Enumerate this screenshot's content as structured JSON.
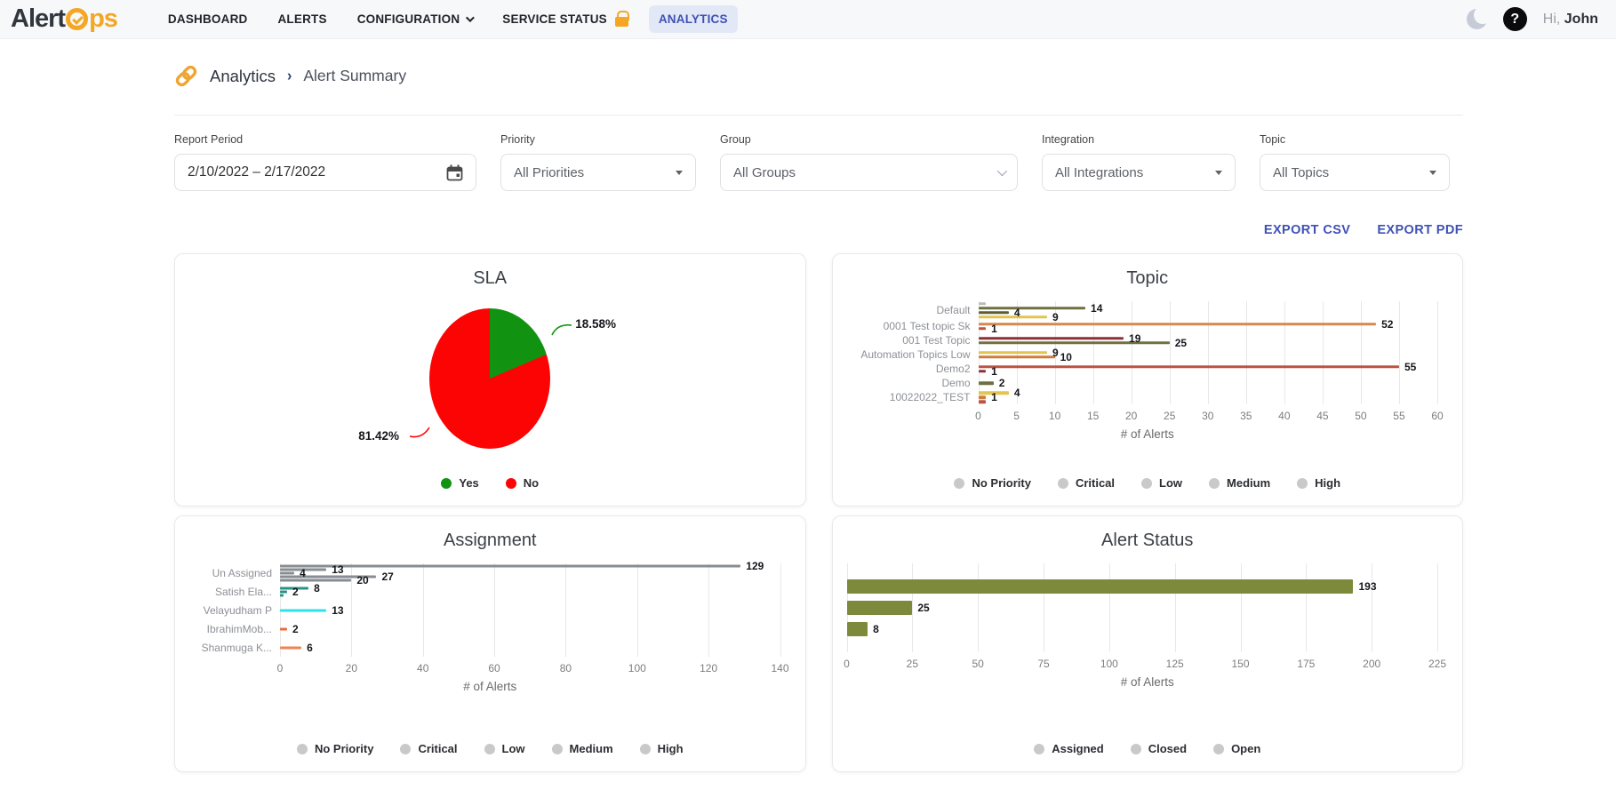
{
  "header": {
    "logo": {
      "part1": "Alert",
      "part2": "ps",
      "clock_color": "#f5a623"
    },
    "nav": [
      {
        "label": "DASHBOARD",
        "active": false,
        "dropdown": false,
        "lock": false
      },
      {
        "label": "ALERTS",
        "active": false,
        "dropdown": false,
        "lock": false
      },
      {
        "label": "CONFIGURATION",
        "active": false,
        "dropdown": true,
        "lock": false
      },
      {
        "label": "SERVICE STATUS",
        "active": false,
        "dropdown": false,
        "lock": true
      },
      {
        "label": "ANALYTICS",
        "active": true,
        "dropdown": false,
        "lock": false
      }
    ],
    "greeting_prefix": "Hi,",
    "user_name": "John",
    "accent_color": "#3f51b5",
    "lock_color": "#f5a623"
  },
  "breadcrumb": {
    "section": "Analytics",
    "page": "Alert Summary",
    "icon": "link-icon"
  },
  "filters": [
    {
      "label": "Report Period",
      "value": "2/10/2022 – 2/17/2022",
      "control": "daterange",
      "icon": "calendar-icon"
    },
    {
      "label": "Priority",
      "value": "All Priorities",
      "control": "select",
      "icon": "triangle-down-icon"
    },
    {
      "label": "Group",
      "value": "All Groups",
      "control": "select",
      "icon": "chevron-down-icon"
    },
    {
      "label": "Integration",
      "value": "All Integrations",
      "control": "select",
      "icon": "triangle-down-icon"
    },
    {
      "label": "Topic",
      "value": "All Topics",
      "control": "select",
      "icon": "triangle-down-icon"
    }
  ],
  "export": {
    "csv": "EXPORT CSV",
    "pdf": "EXPORT PDF"
  },
  "chart_data": [
    {
      "type": "pie",
      "title": "SLA",
      "slices": [
        {
          "label": "Yes",
          "value": 18.58,
          "display": "18.58%",
          "color": "#119311"
        },
        {
          "label": "No",
          "value": 81.42,
          "display": "81.42%",
          "color": "#fc0404"
        }
      ],
      "legend": [
        {
          "label": "Yes",
          "color": "#119311"
        },
        {
          "label": "No",
          "color": "#fc0404"
        }
      ],
      "legend_colored": true
    },
    {
      "type": "bar",
      "title": "Topic",
      "orientation": "horizontal",
      "xlabel": "# of Alerts",
      "xlim": [
        0,
        60
      ],
      "xticks": [
        0,
        5,
        10,
        15,
        20,
        25,
        30,
        35,
        40,
        45,
        50,
        55,
        60
      ],
      "grid": true,
      "legend": [
        "No Priority",
        "Critical",
        "Low",
        "Medium",
        "High"
      ],
      "legend_dot_color": "#c9c9c9",
      "groups": [
        {
          "label": "Default",
          "bars": [
            {
              "value": 1,
              "color": "#b9bdb9",
              "label": ""
            },
            {
              "value": 14,
              "color": "#6f7040",
              "label": "14"
            },
            {
              "value": 4,
              "color": "#5c5e31",
              "label": "4"
            },
            {
              "value": 9,
              "color": "#e2c44e",
              "label": "9"
            }
          ]
        },
        {
          "label": "0001 Test topic Sk",
          "bars": [
            {
              "value": 52,
              "color": "#d28a50",
              "label": "52"
            },
            {
              "value": 1,
              "color": "#bd5340",
              "label": "1"
            }
          ]
        },
        {
          "label": "001 Test Topic",
          "bars": [
            {
              "value": 19,
              "color": "#8f3038",
              "label": "19"
            },
            {
              "value": 25,
              "color": "#6f7040",
              "label": "25"
            }
          ]
        },
        {
          "label": "Automation Topics Low",
          "bars": [
            {
              "value": 9,
              "color": "#e2c44e",
              "label": "9"
            },
            {
              "value": 10,
              "color": "#cd7c3e",
              "label": "10"
            }
          ]
        },
        {
          "label": "Demo2",
          "bars": [
            {
              "value": 55,
              "color": "#bd5340",
              "label": "55"
            },
            {
              "value": 1,
              "color": "#8f3038",
              "label": "1"
            }
          ]
        },
        {
          "label": "Demo",
          "bars": [
            {
              "value": 2,
              "color": "#6f7040",
              "label": "2"
            }
          ]
        },
        {
          "label": "10022022_TEST",
          "bars": [
            {
              "value": 4,
              "color": "#e2c44e",
              "label": "4"
            },
            {
              "value": 1,
              "color": "#cd7c3e",
              "label": "1"
            },
            {
              "value": 1,
              "color": "#bd5340",
              "label": ""
            }
          ]
        }
      ]
    },
    {
      "type": "bar",
      "title": "Assignment",
      "orientation": "horizontal",
      "xlabel": "# of Alerts",
      "xlim": [
        0,
        140
      ],
      "xticks": [
        0,
        20,
        40,
        60,
        80,
        100,
        120,
        140
      ],
      "grid": true,
      "legend": [
        "No Priority",
        "Critical",
        "Low",
        "Medium",
        "High"
      ],
      "legend_dot_color": "#c9c9c9",
      "groups": [
        {
          "label": "Un Assigned",
          "bars": [
            {
              "value": 129,
              "color": "#878d92",
              "label": "129"
            },
            {
              "value": 13,
              "color": "#878d92",
              "label": "13"
            },
            {
              "value": 4,
              "color": "#878d92",
              "label": "4"
            },
            {
              "value": 27,
              "color": "#878d92",
              "label": "27"
            },
            {
              "value": 20,
              "color": "#878d92",
              "label": "20"
            }
          ]
        },
        {
          "label": "Satish Ela...",
          "bars": [
            {
              "value": 8,
              "color": "#2a9288",
              "label": "8"
            },
            {
              "value": 2,
              "color": "#2a9288",
              "label": "2"
            },
            {
              "value": 1,
              "color": "#2a9288",
              "label": ""
            }
          ]
        },
        {
          "label": "Velayudham P",
          "bars": [
            {
              "value": 13,
              "color": "#2de2ea",
              "label": "13"
            }
          ]
        },
        {
          "label": "IbrahimMob...",
          "bars": [
            {
              "value": 2,
              "color": "#ed6a3a",
              "label": "2"
            }
          ]
        },
        {
          "label": "Shanmuga K...",
          "bars": [
            {
              "value": 6,
              "color": "#f08352",
              "label": "6"
            }
          ]
        }
      ]
    },
    {
      "type": "bar",
      "title": "Alert Status",
      "orientation": "horizontal",
      "xlabel": "# of Alerts",
      "xlim": [
        0,
        225
      ],
      "xticks": [
        0,
        25,
        50,
        75,
        100,
        125,
        150,
        175,
        200,
        225
      ],
      "grid": true,
      "legend": [
        "Assigned",
        "Closed",
        "Open"
      ],
      "legend_dot_color": "#c9c9c9",
      "groups": [
        {
          "label": "",
          "bars": [
            {
              "value": 193,
              "color": "#7d8a3c",
              "label": "193"
            },
            {
              "value": 25,
              "color": "#7d8a3c",
              "label": "25"
            },
            {
              "value": 8,
              "color": "#7d8a3c",
              "label": "8"
            }
          ]
        }
      ]
    }
  ]
}
